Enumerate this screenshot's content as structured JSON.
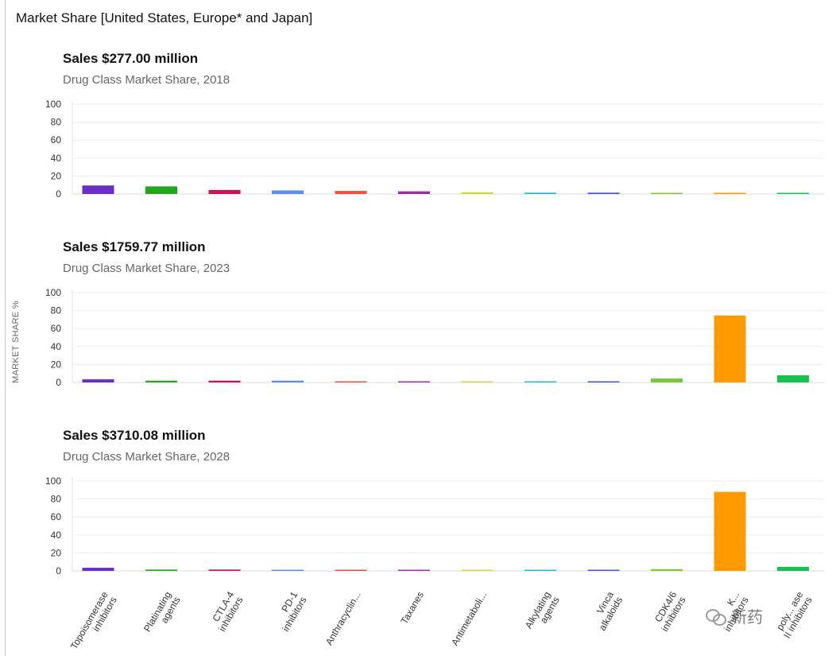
{
  "header": {
    "title": "Market Share [United States, Europe* and Japan]"
  },
  "y_axis_title": "MARKET SHARE %",
  "categories": [
    "Topoisomerase inhibitors",
    "Platinating agents",
    "CTLA-4 inhibitors",
    "PD-1 inhibitors",
    "Anthracyclin...",
    "Taxanes",
    "Antimetaboli...",
    "Alkylating agents",
    "Vinca alkaloids",
    "CDK4/6 inhibitors",
    "K... inhibitors",
    "poly... ase II inhibitors"
  ],
  "category_lines": [
    [
      "Topoisomerase",
      "inhibitors"
    ],
    [
      "Platinating",
      "agents"
    ],
    [
      "CTLA-4",
      "inhibitors"
    ],
    [
      "PD-1",
      "inhibitors"
    ],
    [
      "Anthracyclin..."
    ],
    [
      "Taxanes"
    ],
    [
      "Antimetaboli..."
    ],
    [
      "Alkylating",
      "agents"
    ],
    [
      "Vinca",
      "alkaloids"
    ],
    [
      "CDK4/6",
      "inhibitors"
    ],
    [
      "K...",
      "inhibitors"
    ],
    [
      "poly... ase",
      "II inhibitors"
    ]
  ],
  "colors": [
    "#6a2ec8",
    "#22a81c",
    "#d0105a",
    "#5b8df0",
    "#f0503c",
    "#a02ab0",
    "#c8dc3c",
    "#22b8dc",
    "#3c5ad8",
    "#7cc83c",
    "#ff9900",
    "#18c050"
  ],
  "chart_data": [
    {
      "type": "bar",
      "title": "Sales $277.00 million",
      "subtitle": "Drug Class Market Share, 2018",
      "ylabel": "MARKET SHARE %",
      "ylim": [
        0,
        100
      ],
      "yticks": [
        0,
        20,
        40,
        60,
        80,
        100
      ],
      "grid": true,
      "categories": [
        "Topoisomerase inhibitors",
        "Platinating agents",
        "CTLA-4 inhibitors",
        "PD-1 inhibitors",
        "Anthracyclin...",
        "Taxanes",
        "Antimetaboli...",
        "Alkylating agents",
        "Vinca alkaloids",
        "CDK4/6 inhibitors",
        "K... inhibitors",
        "poly... ase II inhibitors"
      ],
      "values": [
        9.5,
        8.5,
        4.5,
        4.0,
        3.5,
        3.0,
        2.0,
        1.5,
        1.5,
        1.0,
        1.0,
        1.0
      ]
    },
    {
      "type": "bar",
      "title": "Sales $1759.77 million",
      "subtitle": "Drug Class Market Share, 2023",
      "ylabel": "MARKET SHARE %",
      "ylim": [
        0,
        100
      ],
      "yticks": [
        0,
        20,
        40,
        60,
        80,
        100
      ],
      "grid": true,
      "categories": [
        "Topoisomerase inhibitors",
        "Platinating agents",
        "CTLA-4 inhibitors",
        "PD-1 inhibitors",
        "Anthracyclin...",
        "Taxanes",
        "Antimetaboli...",
        "Alkylating agents",
        "Vinca alkaloids",
        "CDK4/6 inhibitors",
        "K... inhibitors",
        "poly... ase II inhibitors"
      ],
      "values": [
        3.5,
        2.0,
        2.0,
        2.0,
        1.0,
        1.0,
        1.0,
        0.5,
        1.0,
        4.5,
        74.5,
        8.0
      ]
    },
    {
      "type": "bar",
      "title": "Sales $3710.08 million",
      "subtitle": "Drug Class Market Share, 2028",
      "ylabel": "MARKET SHARE %",
      "ylim": [
        0,
        100
      ],
      "yticks": [
        0,
        20,
        40,
        60,
        80,
        100
      ],
      "grid": true,
      "categories": [
        "Topoisomerase inhibitors",
        "Platinating agents",
        "CTLA-4 inhibitors",
        "PD-1 inhibitors",
        "Anthracyclin...",
        "Taxanes",
        "Antimetaboli...",
        "Alkylating agents",
        "Vinca alkaloids",
        "CDK4/6 inhibitors",
        "K... inhibitors",
        "poly... ase II inhibitors"
      ],
      "values": [
        3.5,
        1.5,
        1.5,
        1.0,
        1.0,
        1.0,
        1.0,
        1.0,
        1.0,
        2.0,
        88.0,
        4.5
      ]
    }
  ],
  "watermark": {
    "text": "新药"
  }
}
